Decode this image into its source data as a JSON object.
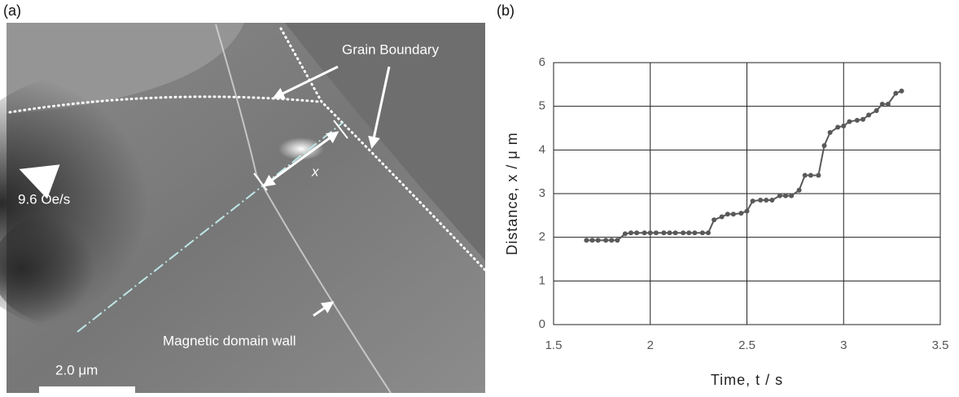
{
  "panel_a": {
    "label": "(a)",
    "annotations": {
      "grain_boundary": "Grain Boundary",
      "field_rate": "9.6 Oe/s",
      "distance_symbol": "x",
      "domain_wall": "Magnetic domain wall",
      "scale_bar": "2.0 μm"
    }
  },
  "panel_b": {
    "label": "(b)"
  },
  "chart_data": {
    "type": "line",
    "color": "#595959",
    "x_label": "Time, t / s",
    "y_label": "Distance, x / μ m",
    "x": [
      1.67,
      1.7,
      1.73,
      1.77,
      1.8,
      1.83,
      1.87,
      1.9,
      1.93,
      1.97,
      2.0,
      2.03,
      2.07,
      2.1,
      2.13,
      2.17,
      2.2,
      2.23,
      2.27,
      2.3,
      2.33,
      2.37,
      2.4,
      2.43,
      2.47,
      2.5,
      2.53,
      2.57,
      2.6,
      2.63,
      2.67,
      2.7,
      2.73,
      2.77,
      2.8,
      2.83,
      2.87,
      2.9,
      2.93,
      2.97,
      3.0,
      3.03,
      3.07,
      3.1,
      3.13,
      3.17,
      3.2,
      3.23,
      3.27,
      3.3
    ],
    "values": [
      1.93,
      1.93,
      1.93,
      1.93,
      1.93,
      1.93,
      2.08,
      2.1,
      2.1,
      2.1,
      2.1,
      2.1,
      2.1,
      2.1,
      2.1,
      2.1,
      2.1,
      2.1,
      2.1,
      2.1,
      2.4,
      2.47,
      2.53,
      2.53,
      2.55,
      2.6,
      2.83,
      2.85,
      2.85,
      2.85,
      2.95,
      2.95,
      2.95,
      3.08,
      3.42,
      3.42,
      3.42,
      4.1,
      4.4,
      4.52,
      4.55,
      4.65,
      4.68,
      4.7,
      4.8,
      4.9,
      5.05,
      5.05,
      5.3,
      5.35
    ],
    "xlim": [
      1.5,
      3.5
    ],
    "xticks": [
      1.5,
      2,
      2.5,
      3,
      3.5
    ],
    "ylim": [
      0,
      6
    ],
    "yticks": [
      0,
      1,
      2,
      3,
      4,
      5,
      6
    ],
    "grid": true
  }
}
